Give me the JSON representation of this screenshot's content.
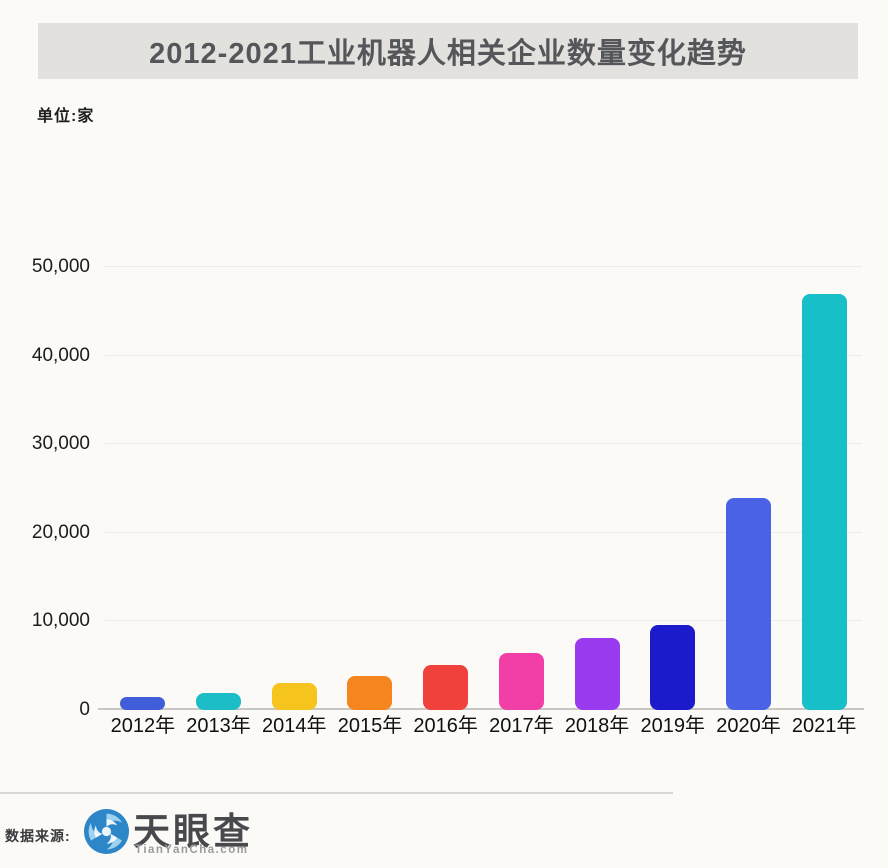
{
  "header": {
    "title": "2012-2021工业机器人相关企业数量变化趋势",
    "unit_label": "单位:家"
  },
  "chart_data": {
    "type": "bar",
    "title": "2012-2021工业机器人相关企业数量变化趋势",
    "xlabel": "",
    "ylabel": "单位:家",
    "categories": [
      "2012年",
      "2013年",
      "2014年",
      "2015年",
      "2016年",
      "2017年",
      "2018年",
      "2019年",
      "2020年",
      "2021年"
    ],
    "values": [
      1500,
      1900,
      3100,
      3800,
      5100,
      6400,
      8100,
      9600,
      23900,
      47000
    ],
    "bar_colors": [
      "#3f5ed7",
      "#1cbdc6",
      "#f6c51d",
      "#f5861f",
      "#f0413c",
      "#f23fa8",
      "#9b3bf0",
      "#1b1bcb",
      "#4a63e6",
      "#17bfc8"
    ],
    "ylim": [
      0,
      50000
    ],
    "yticks": [
      0,
      10000,
      20000,
      30000,
      40000,
      50000
    ],
    "ytick_labels": [
      "0",
      "10,000",
      "20,000",
      "30,000",
      "40,000",
      "50,000"
    ],
    "grid": true,
    "legend": false
  },
  "footer": {
    "source_label": "数据来源:",
    "brand_name": "天眼查",
    "brand_domain": "TianYanCha.com",
    "logo_icon": "tianyancha-aperture-icon",
    "brand_color": "#2d86c8",
    "banner_color": "#e2e1dd"
  }
}
